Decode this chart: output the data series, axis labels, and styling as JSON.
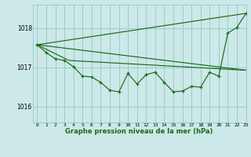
{
  "xlabel": "Graphe pression niveau de la mer (hPa)",
  "bg_color": "#cce8e8",
  "grid_color": "#99cccc",
  "line_color": "#1a6b1a",
  "xlim": [
    -0.5,
    23
  ],
  "ylim": [
    1015.6,
    1018.6
  ],
  "yticks": [
    1016,
    1017,
    1018
  ],
  "xticks": [
    0,
    1,
    2,
    3,
    4,
    5,
    6,
    7,
    8,
    9,
    10,
    11,
    12,
    13,
    14,
    15,
    16,
    17,
    18,
    19,
    20,
    21,
    22,
    23
  ],
  "line1_x": [
    0,
    23
  ],
  "line1_y": [
    1017.58,
    1018.38
  ],
  "line2_x": [
    0,
    23
  ],
  "line2_y": [
    1017.58,
    1016.93
  ],
  "line3_x": [
    0,
    3.5,
    23
  ],
  "line3_y": [
    1017.58,
    1017.18,
    1016.93
  ],
  "measured_x": [
    0,
    1,
    2,
    3,
    4,
    5,
    6,
    7,
    8,
    9,
    10,
    11,
    12,
    13,
    14,
    15,
    16,
    17,
    18,
    19,
    20,
    21,
    22,
    23
  ],
  "measured_y": [
    1017.58,
    1017.38,
    1017.22,
    1017.18,
    1017.02,
    1016.78,
    1016.76,
    1016.62,
    1016.42,
    1016.38,
    1016.85,
    1016.58,
    1016.82,
    1016.88,
    1016.62,
    1016.38,
    1016.4,
    1016.52,
    1016.5,
    1016.88,
    1016.78,
    1017.88,
    1018.02,
    1018.38
  ]
}
